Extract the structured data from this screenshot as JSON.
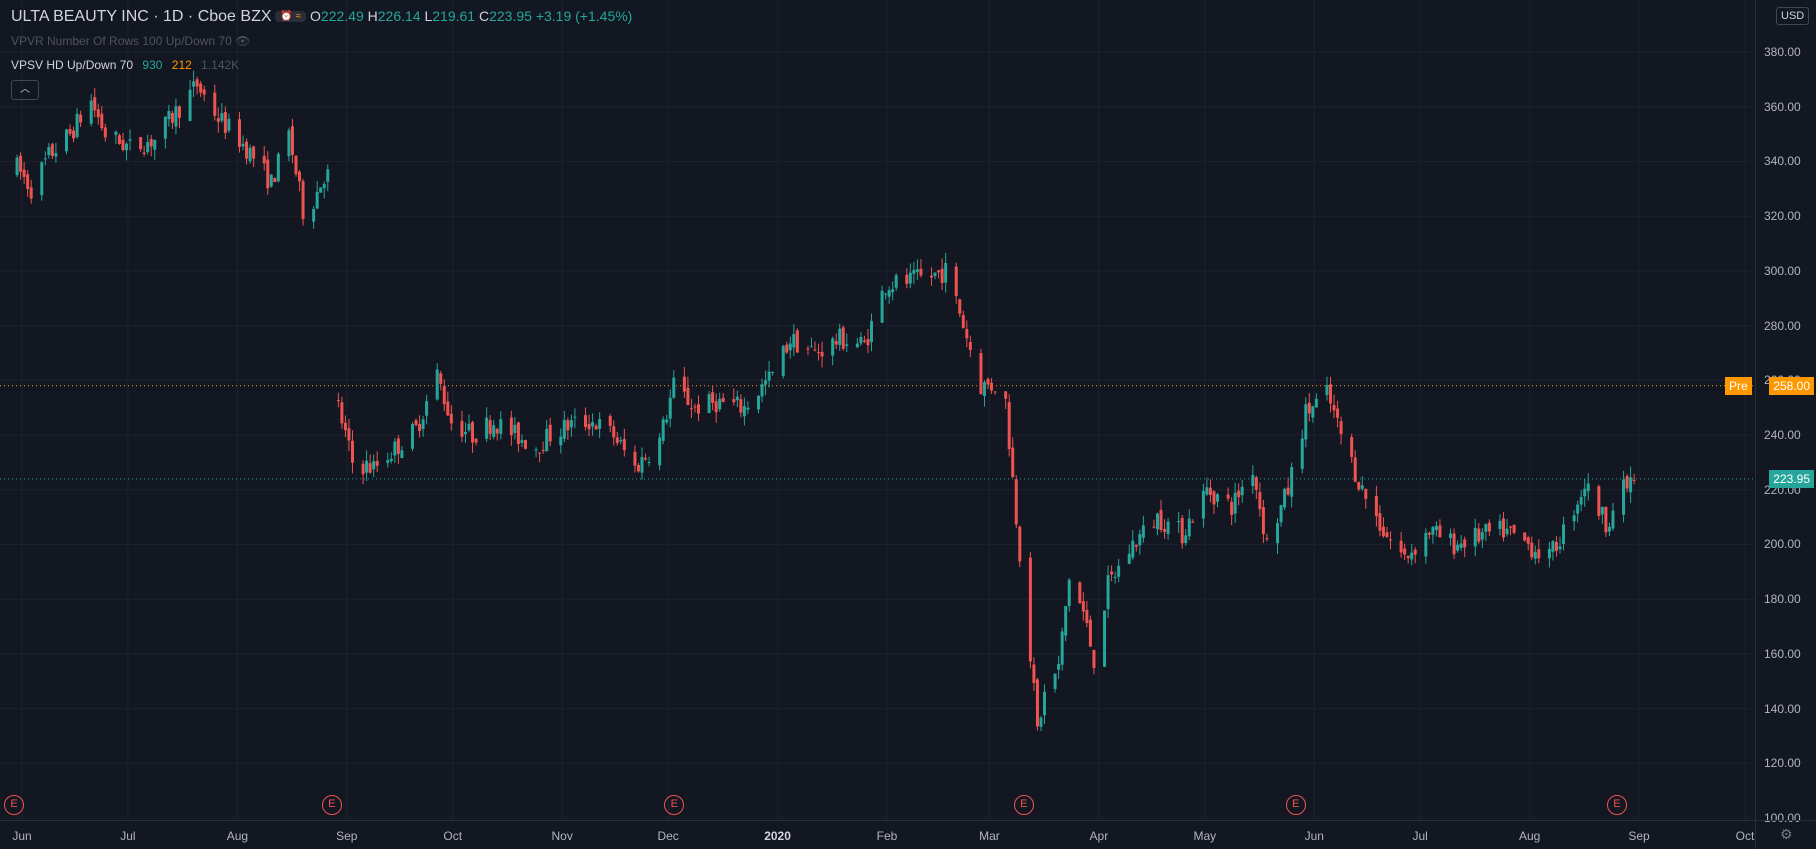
{
  "header": {
    "title": "ULTA BEAUTY INC · 1D · Cboe BZX",
    "ohlc": {
      "o_label": "O",
      "o": "222.49",
      "h_label": "H",
      "h": "226.14",
      "l_label": "L",
      "l": "219.61",
      "c_label": "C",
      "c": "223.95",
      "change": "+3.19 (+1.45%)"
    },
    "indicator1": "VPVR Number Of Rows 100 Up/Down 70",
    "indicator2": {
      "label": "VPSV HD Up/Down 70",
      "v1": "930",
      "v2": "212",
      "v3": "1.142K"
    },
    "currency": "USD"
  },
  "price_badges": {
    "pre": {
      "label": "Pre",
      "value": "258.00",
      "color": "#ff9800"
    },
    "last": {
      "value": "223.95",
      "color": "#26a69a"
    }
  },
  "earnings_markers": {
    "label": "E",
    "months": [
      "Jun",
      "Sep",
      "Dec",
      "Mar",
      "Jun",
      "Sep"
    ]
  },
  "colors": {
    "up": "#26a69a",
    "down": "#ef5350",
    "background": "#131722"
  },
  "chart_data": {
    "type": "candlestick",
    "title": "ULTA BEAUTY INC · 1D · Cboe BZX",
    "y_ticks": [
      "380.00",
      "360.00",
      "340.00",
      "320.00",
      "300.00",
      "280.00",
      "260.00",
      "240.00",
      "220.00",
      "200.00",
      "180.00",
      "160.00",
      "140.00",
      "120.00",
      "100.00"
    ],
    "ylim": [
      100,
      385
    ],
    "x_ticks": [
      "Jun",
      "Jul",
      "Aug",
      "Sep",
      "Oct",
      "Nov",
      "Dec",
      "2020",
      "Feb",
      "Mar",
      "Apr",
      "May",
      "Jun",
      "Jul",
      "Aug",
      "Sep",
      "Oct"
    ],
    "series": [
      {
        "close_points": [
          [
            "2019-06-03",
            338
          ],
          [
            "2019-06-07",
            330
          ],
          [
            "2019-06-12",
            342
          ],
          [
            "2019-06-18",
            350
          ],
          [
            "2019-06-24",
            362
          ],
          [
            "2019-06-28",
            350
          ],
          [
            "2019-07-05",
            345
          ],
          [
            "2019-07-12",
            348
          ],
          [
            "2019-07-18",
            358
          ],
          [
            "2019-07-24",
            368
          ],
          [
            "2019-07-30",
            356
          ],
          [
            "2019-08-05",
            348
          ],
          [
            "2019-08-10",
            340
          ],
          [
            "2019-08-14",
            332
          ],
          [
            "2019-08-19",
            350
          ],
          [
            "2019-08-23",
            322
          ],
          [
            "2019-08-26",
            326
          ],
          [
            "2019-08-29",
            335
          ],
          [
            "2019-08-30",
            335
          ],
          [
            "2019-09-02",
            250
          ],
          [
            "2019-09-06",
            230
          ],
          [
            "2019-09-12",
            228
          ],
          [
            "2019-09-18",
            235
          ],
          [
            "2019-09-24",
            242
          ],
          [
            "2019-09-30",
            262
          ],
          [
            "2019-10-04",
            245
          ],
          [
            "2019-10-10",
            240
          ],
          [
            "2019-10-16",
            245
          ],
          [
            "2019-10-22",
            240
          ],
          [
            "2019-10-28",
            236
          ],
          [
            "2019-11-01",
            240
          ],
          [
            "2019-11-07",
            244
          ],
          [
            "2019-11-13",
            245
          ],
          [
            "2019-11-19",
            240
          ],
          [
            "2019-11-25",
            228
          ],
          [
            "2019-12-02",
            238
          ],
          [
            "2019-12-06",
            258
          ],
          [
            "2019-12-12",
            250
          ],
          [
            "2019-12-18",
            252
          ],
          [
            "2019-12-26",
            250
          ],
          [
            "2020-01-03",
            262
          ],
          [
            "2020-01-08",
            275
          ],
          [
            "2020-01-15",
            270
          ],
          [
            "2020-01-22",
            275
          ],
          [
            "2020-01-29",
            273
          ],
          [
            "2020-02-04",
            295
          ],
          [
            "2020-02-10",
            296
          ],
          [
            "2020-02-17",
            298
          ],
          [
            "2020-02-21",
            300
          ],
          [
            "2020-02-25",
            285
          ],
          [
            "2020-03-02",
            258
          ],
          [
            "2020-03-06",
            258
          ],
          [
            "2020-03-09",
            252
          ],
          [
            "2020-03-12",
            210
          ],
          [
            "2020-03-16",
            160
          ],
          [
            "2020-03-18",
            132
          ],
          [
            "2020-03-20",
            145
          ],
          [
            "2020-03-24",
            155
          ],
          [
            "2020-03-27",
            188
          ],
          [
            "2020-03-31",
            175
          ],
          [
            "2020-04-03",
            158
          ],
          [
            "2020-04-07",
            185
          ],
          [
            "2020-04-14",
            200
          ],
          [
            "2020-04-21",
            210
          ],
          [
            "2020-04-28",
            204
          ],
          [
            "2020-05-05",
            220
          ],
          [
            "2020-05-12",
            214
          ],
          [
            "2020-05-18",
            228
          ],
          [
            "2020-05-22",
            200
          ],
          [
            "2020-05-28",
            220
          ],
          [
            "2020-06-02",
            248
          ],
          [
            "2020-06-08",
            255
          ],
          [
            "2020-06-12",
            240
          ],
          [
            "2020-06-18",
            220
          ],
          [
            "2020-06-24",
            205
          ],
          [
            "2020-06-30",
            195
          ],
          [
            "2020-07-07",
            205
          ],
          [
            "2020-07-14",
            200
          ],
          [
            "2020-07-21",
            203
          ],
          [
            "2020-07-28",
            205
          ],
          [
            "2020-08-04",
            200
          ],
          [
            "2020-08-10",
            195
          ],
          [
            "2020-08-14",
            205
          ],
          [
            "2020-08-20",
            222
          ],
          [
            "2020-08-26",
            208
          ],
          [
            "2020-08-31",
            220
          ],
          [
            "2020-09-03",
            223.95
          ]
        ]
      }
    ]
  }
}
